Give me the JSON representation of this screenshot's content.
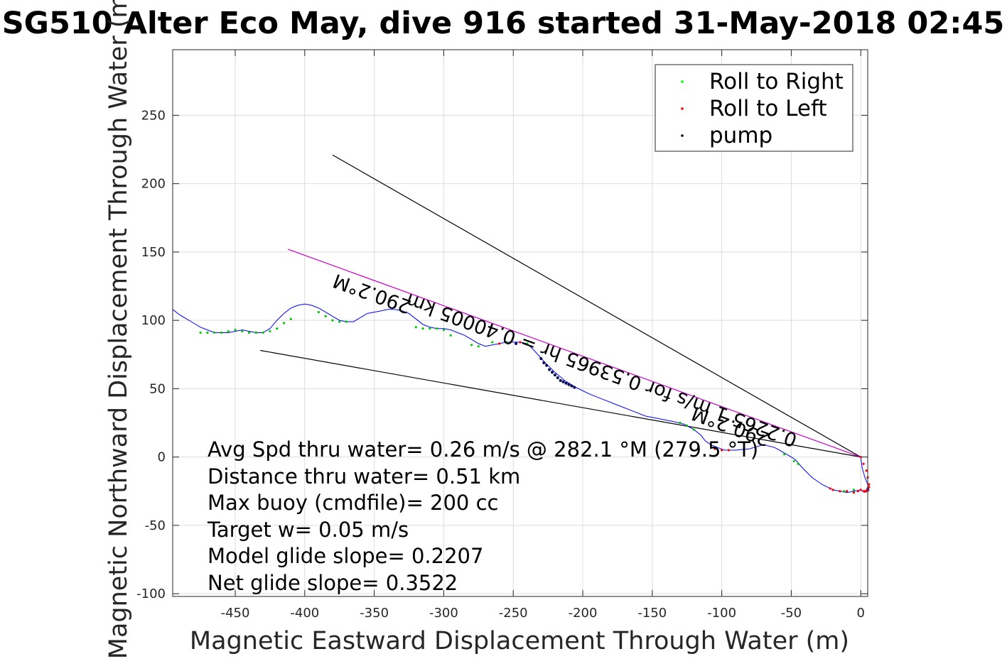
{
  "chart_data": {
    "type": "line",
    "title": "SG510 Alter Eco May, dive 916 started 31-May-2018 02:45",
    "xlabel": "Magnetic Eastward Displacement Through Water (m)",
    "ylabel": "Magnetic Northward Displacement Through Water (m)",
    "xlim": [
      -495,
      5
    ],
    "ylim": [
      -102,
      298
    ],
    "xticks": [
      -450,
      -400,
      -350,
      -300,
      -250,
      -200,
      -150,
      -100,
      -50,
      0
    ],
    "xtick_labels": [
      "-450",
      "-400",
      "-350",
      "-300",
      "-250",
      "-200",
      "-150",
      "-100",
      "-50",
      "0"
    ],
    "yticks": [
      -100,
      -50,
      0,
      50,
      100,
      150,
      200,
      250
    ],
    "ytick_labels": [
      "-100",
      "-50",
      "0",
      "50",
      "100",
      "150",
      "200",
      "250"
    ],
    "grid": true,
    "legend": {
      "placement": "top-right",
      "entries": [
        {
          "label": "Roll to Right",
          "color": "#00ff00"
        },
        {
          "label": "Roll to Left",
          "color": "#ff0000"
        },
        {
          "label": "pump",
          "color": "#000000"
        }
      ]
    },
    "track_color": "#0000ff",
    "track": {
      "x": [
        0,
        1,
        3,
        5,
        6,
        5,
        3,
        0,
        -5,
        -10,
        -15,
        -20,
        -28,
        -35,
        -42,
        -47,
        -50,
        -55,
        -62,
        -70,
        -80,
        -90,
        -98,
        -103,
        -108,
        -112,
        -115,
        -120,
        -127,
        -135,
        -145,
        -155,
        -165,
        -175,
        -185,
        -195,
        -205,
        -213,
        -220,
        -228,
        -235,
        -240,
        -245,
        -250,
        -255,
        -260,
        -265,
        -270,
        -275,
        -280,
        -285,
        -290,
        -295,
        -300,
        -305,
        -310,
        -315,
        -320,
        -325,
        -330,
        -335,
        -340,
        -345,
        -350,
        -355,
        -360,
        -365,
        -370,
        -375,
        -380,
        -385,
        -390,
        -395,
        -400,
        -405,
        -410,
        -415,
        -420,
        -425,
        -430,
        -435,
        -440,
        -445,
        -450,
        -455,
        -460,
        -465,
        -470,
        -475,
        -480,
        -485,
        -490,
        -495
      ],
      "y": [
        0,
        -8,
        -15,
        -20,
        -25,
        -22,
        -26,
        -24,
        -25,
        -26,
        -25,
        -24,
        -20,
        -15,
        -8,
        -2,
        0,
        3,
        7,
        9,
        6,
        5,
        5,
        7,
        9,
        12,
        16,
        20,
        24,
        26,
        28,
        30,
        34,
        38,
        42,
        46,
        51,
        56,
        62,
        70,
        78,
        83,
        84,
        84,
        84,
        83,
        82,
        81,
        83,
        86,
        89,
        91,
        93,
        94,
        94,
        95,
        97,
        101,
        105,
        107,
        108,
        108,
        107,
        106,
        105,
        102,
        99,
        99,
        100,
        103,
        106,
        109,
        111,
        112,
        111,
        109,
        105,
        100,
        94,
        91,
        91,
        92,
        93,
        92,
        91,
        91,
        91,
        93,
        95,
        98,
        101,
        104,
        108
      ]
    },
    "roll_right_points": {
      "x": [
        -5,
        -10,
        -12,
        -45,
        -48,
        -55,
        -120,
        -125,
        -130,
        -240,
        -255,
        -265,
        -275,
        -280,
        -295,
        -300,
        -305,
        -310,
        -315,
        -320,
        -370,
        -375,
        -380,
        -385,
        -390,
        -410,
        -415,
        -420,
        -425,
        -430,
        -435,
        -440,
        -445,
        -450,
        -455,
        -460,
        -465,
        -470,
        -475
      ],
      "y": [
        -24,
        -25,
        -25,
        -5,
        -3,
        2,
        20,
        23,
        25,
        83,
        84,
        84,
        81,
        82,
        89,
        93,
        94,
        94,
        94,
        95,
        99,
        99,
        100,
        103,
        106,
        101,
        98,
        94,
        92,
        91,
        91,
        91,
        92,
        93,
        92,
        91,
        91,
        91,
        91
      ]
    },
    "roll_left_points": {
      "x": [
        0,
        2,
        4,
        5,
        6,
        6,
        5,
        4,
        3,
        2,
        0,
        -2,
        -5,
        -10,
        -15,
        -20,
        -22,
        -95,
        -100,
        -105,
        -260,
        -245
      ],
      "y": [
        0,
        -5,
        -10,
        -15,
        -20,
        -22,
        -24,
        -25,
        -25,
        -25,
        -24,
        -25,
        -26,
        -25,
        -25,
        -24,
        -23,
        5,
        5,
        6,
        83,
        84
      ]
    },
    "pump_points": {
      "x": [
        -230,
        -228,
        -226,
        -224,
        -222,
        -220,
        -218,
        -216,
        -214,
        -212,
        -210,
        -208,
        -206,
        -248
      ],
      "y": [
        72,
        69,
        67,
        64,
        62,
        60,
        58,
        56,
        55,
        54,
        53,
        52,
        51,
        83
      ]
    },
    "black_lines": [
      {
        "x": [
          0,
          -380
        ],
        "y": [
          0,
          221
        ]
      },
      {
        "x": [
          0,
          -432
        ],
        "y": [
          0,
          78
        ]
      }
    ],
    "magenta_line": {
      "x": [
        0,
        -412
      ],
      "y": [
        0,
        152
      ],
      "color": "#cc00cc"
    },
    "line_labels": [
      {
        "text": "290.2°M",
        "x": -92,
        "y": 27
      },
      {
        "text": "0.2265 1 m/s for 0.53965 hr = 0.40005 km",
        "x": -185,
        "y": 68
      },
      {
        "text": "290.2°M",
        "x": -350,
        "y": 124
      }
    ],
    "annotations": [
      "Avg Spd thru water=  0.26 m/s @ 282.1 °M (279.5 °T)",
      "Distance thru water=  0.51 km",
      "Max buoy (cmdfile)= 200 cc",
      "Target w= 0.05 m/s",
      "Model glide slope= 0.2207",
      "Net glide slope= 0.3522"
    ]
  }
}
